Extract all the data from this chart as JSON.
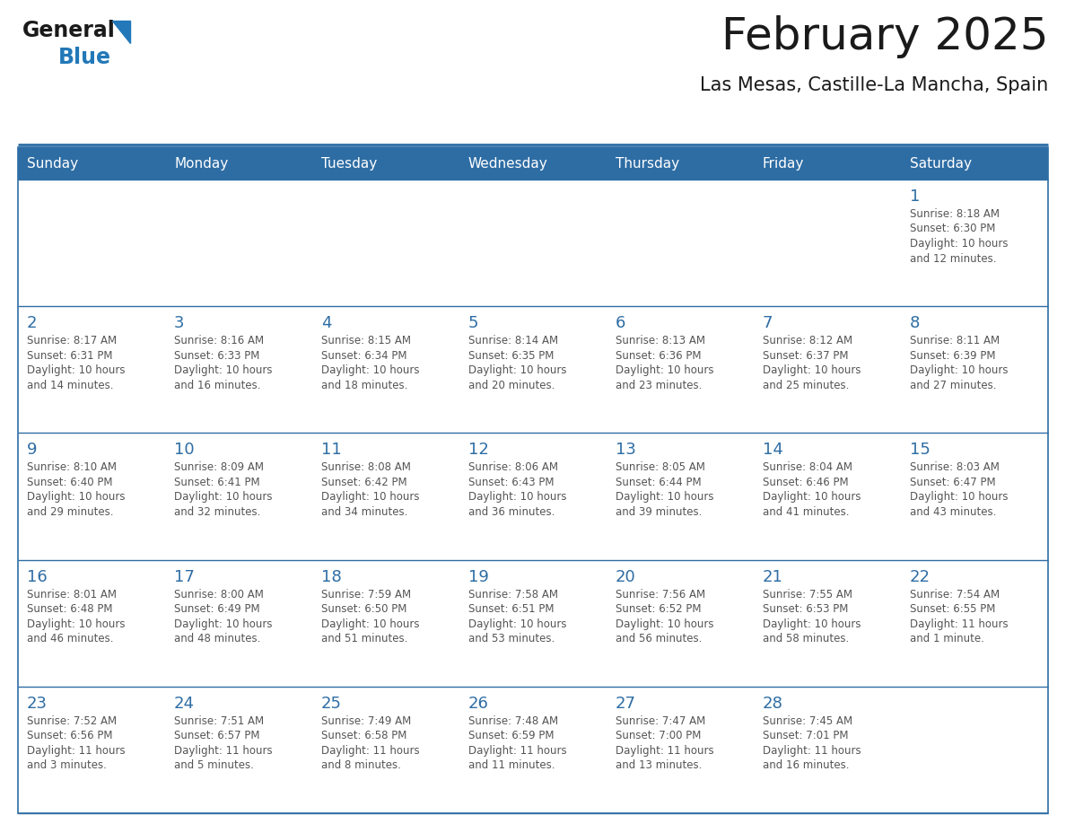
{
  "title": "February 2025",
  "subtitle": "Las Mesas, Castille-La Mancha, Spain",
  "header_bg": "#2E6DA4",
  "header_text_color": "#FFFFFF",
  "cell_bg": "#FFFFFF",
  "day_number_color": "#2E6DA4",
  "text_color": "#555555",
  "border_color": "#2E6DA4",
  "days_of_week": [
    "Sunday",
    "Monday",
    "Tuesday",
    "Wednesday",
    "Thursday",
    "Friday",
    "Saturday"
  ],
  "calendar_data": [
    [
      null,
      null,
      null,
      null,
      null,
      null,
      {
        "day": "1",
        "sunrise": "8:18 AM",
        "sunset": "6:30 PM",
        "daylight": "10 hours\nand 12 minutes."
      }
    ],
    [
      {
        "day": "2",
        "sunrise": "8:17 AM",
        "sunset": "6:31 PM",
        "daylight": "10 hours\nand 14 minutes."
      },
      {
        "day": "3",
        "sunrise": "8:16 AM",
        "sunset": "6:33 PM",
        "daylight": "10 hours\nand 16 minutes."
      },
      {
        "day": "4",
        "sunrise": "8:15 AM",
        "sunset": "6:34 PM",
        "daylight": "10 hours\nand 18 minutes."
      },
      {
        "day": "5",
        "sunrise": "8:14 AM",
        "sunset": "6:35 PM",
        "daylight": "10 hours\nand 20 minutes."
      },
      {
        "day": "6",
        "sunrise": "8:13 AM",
        "sunset": "6:36 PM",
        "daylight": "10 hours\nand 23 minutes."
      },
      {
        "day": "7",
        "sunrise": "8:12 AM",
        "sunset": "6:37 PM",
        "daylight": "10 hours\nand 25 minutes."
      },
      {
        "day": "8",
        "sunrise": "8:11 AM",
        "sunset": "6:39 PM",
        "daylight": "10 hours\nand 27 minutes."
      }
    ],
    [
      {
        "day": "9",
        "sunrise": "8:10 AM",
        "sunset": "6:40 PM",
        "daylight": "10 hours\nand 29 minutes."
      },
      {
        "day": "10",
        "sunrise": "8:09 AM",
        "sunset": "6:41 PM",
        "daylight": "10 hours\nand 32 minutes."
      },
      {
        "day": "11",
        "sunrise": "8:08 AM",
        "sunset": "6:42 PM",
        "daylight": "10 hours\nand 34 minutes."
      },
      {
        "day": "12",
        "sunrise": "8:06 AM",
        "sunset": "6:43 PM",
        "daylight": "10 hours\nand 36 minutes."
      },
      {
        "day": "13",
        "sunrise": "8:05 AM",
        "sunset": "6:44 PM",
        "daylight": "10 hours\nand 39 minutes."
      },
      {
        "day": "14",
        "sunrise": "8:04 AM",
        "sunset": "6:46 PM",
        "daylight": "10 hours\nand 41 minutes."
      },
      {
        "day": "15",
        "sunrise": "8:03 AM",
        "sunset": "6:47 PM",
        "daylight": "10 hours\nand 43 minutes."
      }
    ],
    [
      {
        "day": "16",
        "sunrise": "8:01 AM",
        "sunset": "6:48 PM",
        "daylight": "10 hours\nand 46 minutes."
      },
      {
        "day": "17",
        "sunrise": "8:00 AM",
        "sunset": "6:49 PM",
        "daylight": "10 hours\nand 48 minutes."
      },
      {
        "day": "18",
        "sunrise": "7:59 AM",
        "sunset": "6:50 PM",
        "daylight": "10 hours\nand 51 minutes."
      },
      {
        "day": "19",
        "sunrise": "7:58 AM",
        "sunset": "6:51 PM",
        "daylight": "10 hours\nand 53 minutes."
      },
      {
        "day": "20",
        "sunrise": "7:56 AM",
        "sunset": "6:52 PM",
        "daylight": "10 hours\nand 56 minutes."
      },
      {
        "day": "21",
        "sunrise": "7:55 AM",
        "sunset": "6:53 PM",
        "daylight": "10 hours\nand 58 minutes."
      },
      {
        "day": "22",
        "sunrise": "7:54 AM",
        "sunset": "6:55 PM",
        "daylight": "11 hours\nand 1 minute."
      }
    ],
    [
      {
        "day": "23",
        "sunrise": "7:52 AM",
        "sunset": "6:56 PM",
        "daylight": "11 hours\nand 3 minutes."
      },
      {
        "day": "24",
        "sunrise": "7:51 AM",
        "sunset": "6:57 PM",
        "daylight": "11 hours\nand 5 minutes."
      },
      {
        "day": "25",
        "sunrise": "7:49 AM",
        "sunset": "6:58 PM",
        "daylight": "11 hours\nand 8 minutes."
      },
      {
        "day": "26",
        "sunrise": "7:48 AM",
        "sunset": "6:59 PM",
        "daylight": "11 hours\nand 11 minutes."
      },
      {
        "day": "27",
        "sunrise": "7:47 AM",
        "sunset": "7:00 PM",
        "daylight": "11 hours\nand 13 minutes."
      },
      {
        "day": "28",
        "sunrise": "7:45 AM",
        "sunset": "7:01 PM",
        "daylight": "11 hours\nand 16 minutes."
      },
      null
    ]
  ],
  "logo_general_color": "#1a1a1a",
  "logo_blue_color": "#2278B8",
  "logo_triangle_color": "#2278B8",
  "title_fontsize": 36,
  "subtitle_fontsize": 15,
  "header_fontsize": 11,
  "day_num_fontsize": 13,
  "cell_text_fontsize": 8.5
}
